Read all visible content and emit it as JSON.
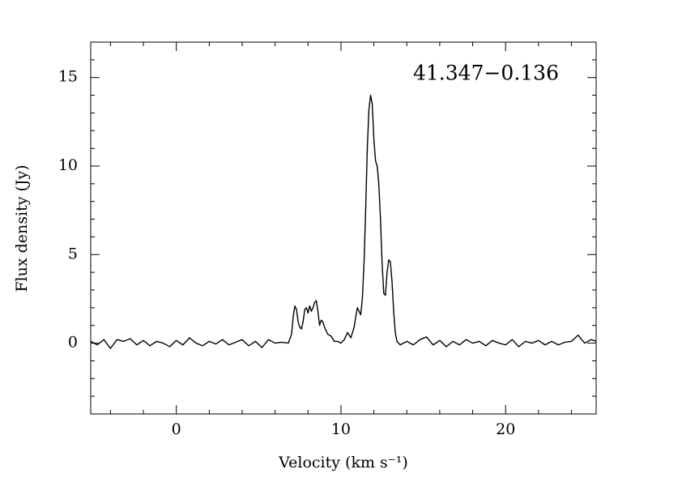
{
  "chart_data": {
    "type": "line",
    "annotation": "41.347−0.136",
    "xlabel": "Velocity (km s⁻¹)",
    "ylabel": "Flux density (Jy)",
    "color": "#000000",
    "xlim": [
      -5.2,
      25.5
    ],
    "ylim": [
      -4,
      17
    ],
    "xticks": [
      0,
      10,
      20
    ],
    "yticks": [
      0,
      5,
      10,
      15
    ],
    "xticks_minor": [
      -4,
      -2,
      2,
      4,
      6,
      8,
      12,
      14,
      16,
      18,
      22,
      24
    ],
    "yticks_minor": [
      -3,
      -2,
      -1,
      1,
      2,
      3,
      4,
      6,
      7,
      8,
      9,
      11,
      12,
      13,
      14,
      16
    ],
    "x": [
      -5.2,
      -4.8,
      -4.4,
      -4.0,
      -3.6,
      -3.2,
      -2.8,
      -2.4,
      -2.0,
      -1.6,
      -1.2,
      -0.8,
      -0.4,
      0.0,
      0.4,
      0.8,
      1.2,
      1.6,
      2.0,
      2.4,
      2.8,
      3.2,
      3.6,
      4.0,
      4.4,
      4.8,
      5.2,
      5.6,
      6.0,
      6.4,
      6.8,
      7.0,
      7.1,
      7.2,
      7.3,
      7.4,
      7.5,
      7.6,
      7.7,
      7.8,
      7.9,
      8.0,
      8.1,
      8.2,
      8.3,
      8.4,
      8.5,
      8.6,
      8.7,
      8.8,
      8.9,
      9.0,
      9.2,
      9.4,
      9.6,
      9.8,
      10.0,
      10.2,
      10.4,
      10.6,
      10.8,
      10.9,
      11.0,
      11.1,
      11.2,
      11.3,
      11.4,
      11.5,
      11.6,
      11.7,
      11.8,
      11.9,
      12.0,
      12.1,
      12.2,
      12.3,
      12.4,
      12.5,
      12.6,
      12.7,
      12.8,
      12.9,
      13.0,
      13.1,
      13.2,
      13.3,
      13.4,
      13.6,
      14.0,
      14.4,
      14.8,
      15.2,
      15.6,
      16.0,
      16.4,
      16.8,
      17.2,
      17.6,
      18.0,
      18.4,
      18.8,
      19.2,
      19.6,
      20.0,
      20.4,
      20.8,
      21.2,
      21.6,
      22.0,
      22.4,
      22.8,
      23.2,
      23.6,
      24.0,
      24.4,
      24.8,
      25.2,
      25.5
    ],
    "values": [
      0.1,
      -0.1,
      0.2,
      -0.3,
      0.2,
      0.1,
      0.25,
      -0.1,
      0.15,
      -0.15,
      0.1,
      0.0,
      -0.2,
      0.15,
      -0.1,
      0.3,
      0.0,
      -0.15,
      0.1,
      -0.05,
      0.2,
      -0.1,
      0.05,
      0.2,
      -0.15,
      0.1,
      -0.25,
      0.2,
      0.0,
      0.05,
      0.0,
      0.5,
      1.5,
      2.1,
      1.9,
      1.2,
      0.9,
      0.8,
      1.2,
      1.9,
      2.0,
      1.7,
      2.1,
      1.8,
      2.0,
      2.3,
      2.4,
      1.8,
      1.0,
      1.3,
      1.2,
      0.9,
      0.5,
      0.4,
      0.1,
      0.1,
      0.0,
      0.2,
      0.6,
      0.3,
      0.9,
      1.5,
      2.0,
      1.8,
      1.6,
      2.5,
      4.5,
      7.5,
      11.0,
      13.2,
      14.0,
      13.5,
      11.5,
      10.3,
      10.0,
      9.0,
      7.0,
      4.5,
      2.8,
      2.7,
      4.0,
      4.7,
      4.6,
      3.5,
      1.8,
      0.6,
      0.1,
      -0.1,
      0.1,
      -0.1,
      0.2,
      0.35,
      -0.1,
      0.15,
      -0.2,
      0.1,
      -0.1,
      0.2,
      0.0,
      0.1,
      -0.15,
      0.15,
      0.0,
      -0.1,
      0.2,
      -0.2,
      0.1,
      0.0,
      0.15,
      -0.1,
      0.1,
      -0.1,
      0.05,
      0.1,
      0.45,
      0.0,
      0.2,
      0.1
    ]
  }
}
